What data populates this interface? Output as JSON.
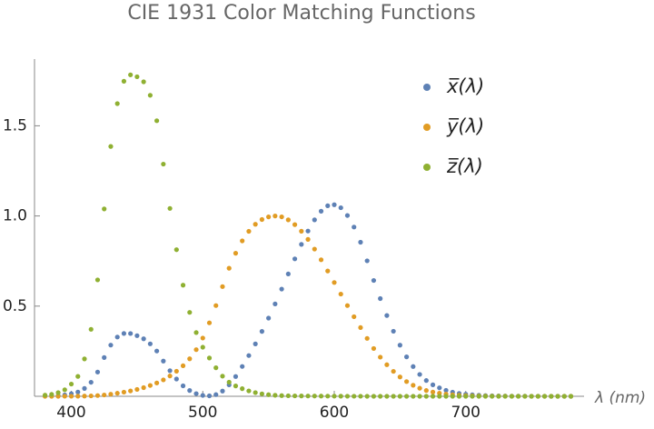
{
  "chart_data": {
    "type": "scatter",
    "title": "CIE 1931 Color Matching Functions",
    "x_label": "λ (nm)",
    "x": [
      380,
      385,
      390,
      395,
      400,
      405,
      410,
      415,
      420,
      425,
      430,
      435,
      440,
      445,
      450,
      455,
      460,
      465,
      470,
      475,
      480,
      485,
      490,
      495,
      500,
      505,
      510,
      515,
      520,
      525,
      530,
      535,
      540,
      545,
      550,
      555,
      560,
      565,
      570,
      575,
      580,
      585,
      590,
      595,
      600,
      605,
      610,
      615,
      620,
      625,
      630,
      635,
      640,
      645,
      650,
      655,
      660,
      665,
      670,
      675,
      680,
      685,
      690,
      695,
      700,
      705,
      710,
      715,
      720,
      725,
      730,
      735,
      740,
      745,
      750,
      755,
      760,
      765,
      770,
      775,
      780
    ],
    "series": [
      {
        "name": "x̅(λ)",
        "color": "#5e81b5",
        "values": [
          0.001368,
          0.002236,
          0.004243,
          0.00765,
          0.01431,
          0.02319,
          0.04351,
          0.07763,
          0.13438,
          0.21477,
          0.2839,
          0.3285,
          0.34828,
          0.34806,
          0.3362,
          0.3187,
          0.2908,
          0.2511,
          0.19536,
          0.1421,
          0.09564,
          0.05795,
          0.03201,
          0.0147,
          0.0049,
          0.0024,
          0.0093,
          0.0291,
          0.06327,
          0.1096,
          0.1655,
          0.22575,
          0.2904,
          0.3597,
          0.43345,
          0.51205,
          0.5945,
          0.6784,
          0.7621,
          0.8425,
          0.9163,
          0.9786,
          1.0263,
          1.0567,
          1.0622,
          1.0456,
          1.0026,
          0.9384,
          0.85445,
          0.7514,
          0.6424,
          0.5419,
          0.4479,
          0.3608,
          0.2835,
          0.2187,
          0.1649,
          0.1212,
          0.0874,
          0.0636,
          0.04677,
          0.0329,
          0.0227,
          0.01584,
          0.011359,
          0.008111,
          0.00579,
          0.004109,
          0.002899,
          0.002049,
          0.00144,
          0.001,
          0.00069,
          0.000476,
          0.000332,
          0.000235,
          0.000166,
          0.000117,
          8.3e-05,
          5.9e-05,
          4.2e-05
        ]
      },
      {
        "name": "y̅(λ)",
        "color": "#e19c24",
        "values": [
          3.9e-05,
          6.4e-05,
          0.00012,
          0.000217,
          0.000396,
          0.00064,
          0.00121,
          0.00218,
          0.004,
          0.0073,
          0.0116,
          0.01684,
          0.023,
          0.0298,
          0.038,
          0.048,
          0.06,
          0.0739,
          0.09098,
          0.1126,
          0.13902,
          0.1693,
          0.20802,
          0.2586,
          0.323,
          0.4073,
          0.503,
          0.6082,
          0.71,
          0.7932,
          0.862,
          0.91485,
          0.954,
          0.9803,
          0.99495,
          1,
          0.995,
          0.9786,
          0.952,
          0.9154,
          0.87,
          0.8163,
          0.757,
          0.6949,
          0.631,
          0.5668,
          0.503,
          0.4412,
          0.381,
          0.321,
          0.265,
          0.217,
          0.175,
          0.1382,
          0.107,
          0.0816,
          0.061,
          0.04458,
          0.032,
          0.0232,
          0.017,
          0.01192,
          0.00821,
          0.005723,
          0.004102,
          0.002929,
          0.002091,
          0.001484,
          0.001047,
          0.00074,
          0.00052,
          0.000361,
          0.000249,
          0.000172,
          0.00012,
          8.5e-05,
          6e-05,
          4.2e-05,
          3e-05,
          2.1e-05,
          1.5e-05
        ]
      },
      {
        "name": "z̅(λ)",
        "color": "#8fb032",
        "values": [
          0.00645,
          0.01055,
          0.02005,
          0.03621,
          0.06785,
          0.1102,
          0.2074,
          0.3713,
          0.6456,
          1.03905,
          1.3856,
          1.62296,
          1.74706,
          1.7826,
          1.77211,
          1.7441,
          1.6692,
          1.5281,
          1.28764,
          1.0419,
          0.81295,
          0.6162,
          0.46518,
          0.3533,
          0.272,
          0.2123,
          0.1582,
          0.1117,
          0.07825,
          0.05725,
          0.04216,
          0.02984,
          0.0203,
          0.0134,
          0.00875,
          0.00575,
          0.0039,
          0.00275,
          0.0021,
          0.0018,
          0.00165,
          0.0014,
          0.0011,
          0.001,
          0.0008,
          0.0006,
          0.00034,
          0.00024,
          0.00019,
          0.0001,
          5e-05,
          3e-05,
          2e-05,
          1e-05,
          0,
          0,
          0,
          0,
          0,
          0,
          0,
          0,
          0,
          0,
          0,
          0,
          0,
          0,
          0,
          0,
          0,
          0,
          0,
          0,
          0,
          0,
          0,
          0,
          0,
          0,
          0
        ]
      }
    ],
    "xlim": [
      372,
      790
    ],
    "xticks": [
      400,
      500,
      600,
      700
    ],
    "ylim": [
      0,
      1.87
    ],
    "yticks": [
      0.5,
      {
        "value": 1,
        "label": "1.0"
      },
      1.5
    ],
    "legend": "top-right"
  }
}
